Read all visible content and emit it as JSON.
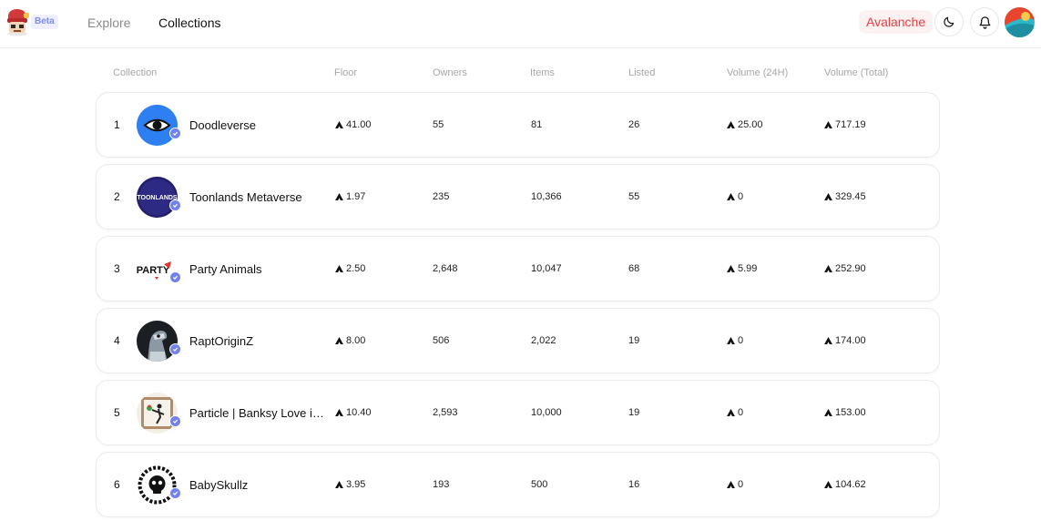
{
  "header": {
    "beta_label": "Beta",
    "nav": [
      {
        "label": "Explore",
        "active": false
      },
      {
        "label": "Collections",
        "active": true
      }
    ],
    "network_label": "Avalanche",
    "icons": [
      "app-logo-icon",
      "moon-icon",
      "bell-icon",
      "user-avatar"
    ]
  },
  "colors": {
    "accent": "#7d8cf5",
    "avalanche_red": "#e84142",
    "verified": "#7280f0"
  },
  "table": {
    "columns": [
      "Collection",
      "Floor",
      "Owners",
      "Items",
      "Listed",
      "Volume (24H)",
      "Volume (Total)"
    ],
    "rows": [
      {
        "rank": "1",
        "name": "Doodleverse",
        "floor": "41.00",
        "owners": "55",
        "items": "81",
        "listed": "26",
        "vol24": "25.00",
        "voltotal": "717.19",
        "thumb": "eye-icon"
      },
      {
        "rank": "2",
        "name": "Toonlands Metaverse",
        "floor": "1.97",
        "owners": "235",
        "items": "10,366",
        "listed": "55",
        "vol24": "0",
        "voltotal": "329.45",
        "thumb": "toonlands-logo",
        "thumb_text": "TOONLANDS"
      },
      {
        "rank": "3",
        "name": "Party Animals",
        "floor": "2.50",
        "owners": "2,648",
        "items": "10,047",
        "listed": "68",
        "vol24": "5.99",
        "voltotal": "252.90",
        "thumb": "party-logo",
        "thumb_text": "PARTY"
      },
      {
        "rank": "4",
        "name": "RaptOriginZ",
        "floor": "8.00",
        "owners": "506",
        "items": "2,022",
        "listed": "19",
        "vol24": "0",
        "voltotal": "174.00",
        "thumb": "raptor-image"
      },
      {
        "rank": "5",
        "name": "Particle | Banksy Love is in the Air",
        "floor": "10.40",
        "owners": "2,593",
        "items": "10,000",
        "listed": "19",
        "vol24": "0",
        "voltotal": "153.00",
        "thumb": "banksy-image"
      },
      {
        "rank": "6",
        "name": "BabySkullz",
        "floor": "3.95",
        "owners": "193",
        "items": "500",
        "listed": "16",
        "vol24": "0",
        "voltotal": "104.62",
        "thumb": "skull-logo"
      }
    ]
  }
}
